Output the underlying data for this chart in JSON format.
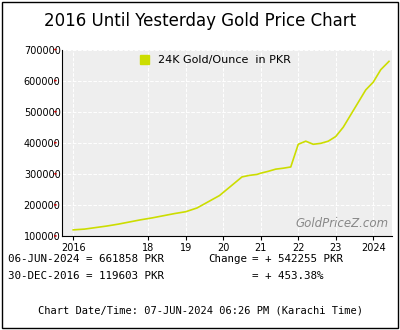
{
  "title": "2016 Until Yesterday Gold Price Chart",
  "legend_label": "24K Gold/Ounce  in PKR",
  "legend_color": "#ccdd00",
  "line_color": "#ccdd00",
  "watermark": "GoldPriceZ.com",
  "x_tick_labels": [
    "2016",
    "18",
    "19",
    "20",
    "21",
    "22",
    "23",
    "2024"
  ],
  "x_tick_positions": [
    2016,
    2018,
    2019,
    2020,
    2021,
    2022,
    2023,
    2024
  ],
  "ylim": [
    100000,
    700000
  ],
  "yticks": [
    100000,
    200000,
    300000,
    400000,
    500000,
    600000,
    700000
  ],
  "xlim": [
    2015.7,
    2024.5
  ],
  "data_x": [
    2016.0,
    2016.3,
    2016.6,
    2016.9,
    2017.2,
    2017.5,
    2017.8,
    2018.1,
    2018.4,
    2018.7,
    2019.0,
    2019.3,
    2019.6,
    2019.9,
    2020.2,
    2020.5,
    2020.7,
    2020.9,
    2021.0,
    2021.2,
    2021.4,
    2021.6,
    2021.8,
    2022.0,
    2022.2,
    2022.4,
    2022.6,
    2022.8,
    2023.0,
    2023.2,
    2023.4,
    2023.6,
    2023.8,
    2024.0,
    2024.2,
    2024.42
  ],
  "data_y": [
    119603,
    122000,
    127000,
    132000,
    138000,
    145000,
    152000,
    158000,
    165000,
    172000,
    178000,
    190000,
    210000,
    230000,
    260000,
    290000,
    295000,
    298000,
    302000,
    308000,
    315000,
    318000,
    322000,
    395000,
    405000,
    395000,
    398000,
    405000,
    420000,
    450000,
    490000,
    530000,
    570000,
    595000,
    635000,
    661858
  ],
  "bottom_line1": "06-JUN-2024 = 661858 PKR",
  "bottom_line2": "30-DEC-2016 = 119603 PKR",
  "change_label": "Change",
  "change_value": "= + 542255 PKR",
  "change_pct": "= + 453.38%",
  "footer": "Chart Date/Time: 07-JUN-2024 06:26 PM (Karachi Time)",
  "bg_color": "#ffffff",
  "plot_bg_color": "#eeeeee",
  "title_fontsize": 12,
  "info_fontsize": 7.8,
  "footer_fontsize": 7.5,
  "watermark_fontsize": 8.5,
  "legend_fontsize": 8
}
